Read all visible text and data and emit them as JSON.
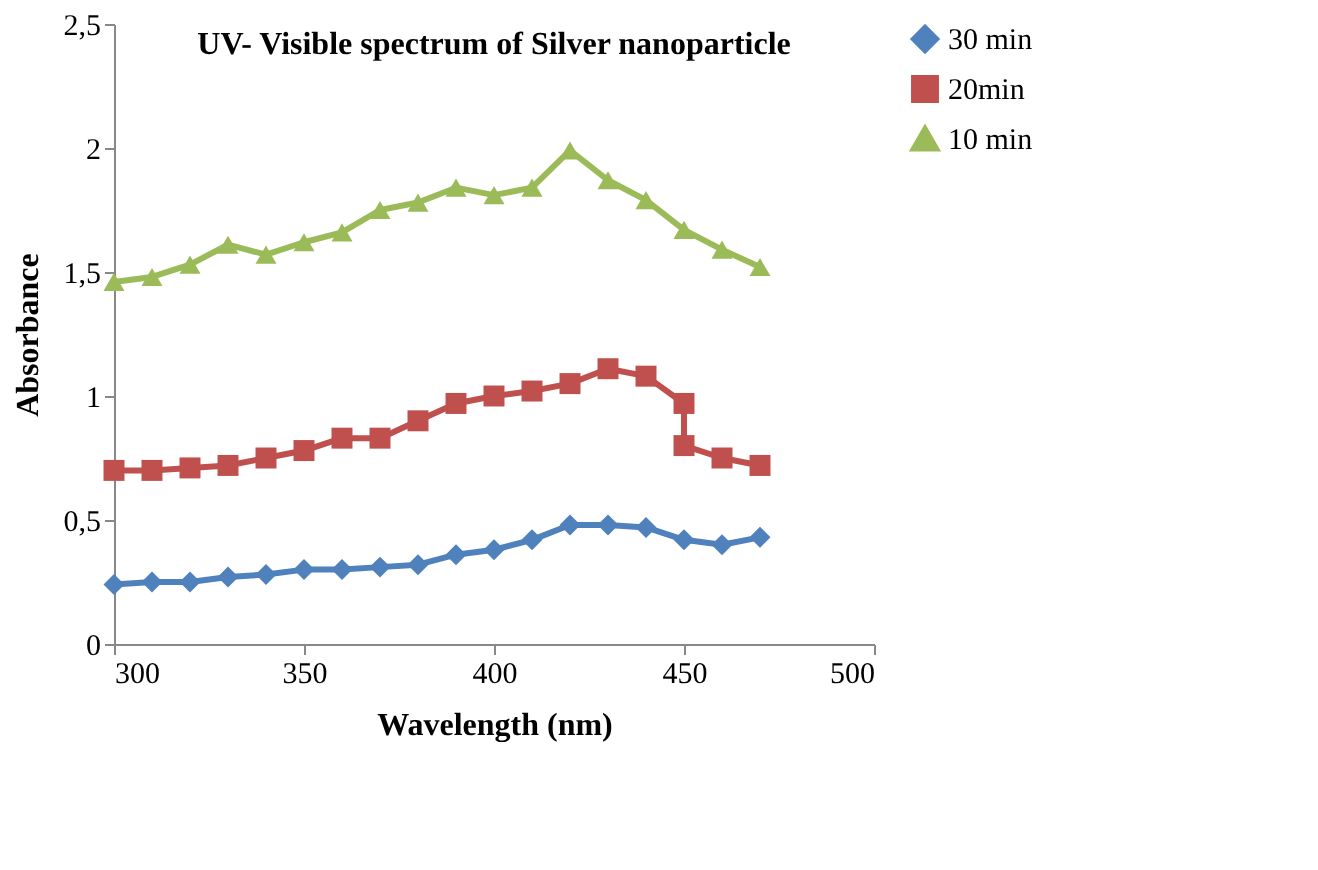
{
  "chart_data": {
    "type": "line",
    "title": "UV- Visible  spectrum of Silver  nanoparticle",
    "xlabel": "Wavelength (nm)",
    "ylabel": "Absorbance",
    "x": [
      300,
      310,
      320,
      330,
      340,
      350,
      360,
      370,
      380,
      390,
      400,
      410,
      420,
      430,
      440,
      450,
      460,
      470
    ],
    "series": [
      {
        "name": "30 min",
        "color": "#4f81bd",
        "marker": "diamond",
        "values": [
          0.24,
          0.25,
          0.25,
          0.27,
          0.28,
          0.3,
          0.3,
          0.31,
          0.32,
          0.36,
          0.38,
          0.42,
          0.48,
          0.48,
          0.47,
          0.42,
          0.4,
          0.43
        ]
      },
      {
        "name": "20min",
        "color": "#c0504d",
        "marker": "square",
        "x": [
          300,
          310,
          320,
          330,
          340,
          350,
          360,
          370,
          380,
          390,
          400,
          410,
          420,
          430,
          440,
          450,
          450,
          460,
          470
        ],
        "values": [
          0.7,
          0.7,
          0.71,
          0.72,
          0.75,
          0.78,
          0.83,
          0.83,
          0.9,
          0.97,
          1.0,
          1.02,
          1.05,
          1.11,
          1.08,
          0.97,
          0.8,
          0.75,
          0.72
        ]
      },
      {
        "name": "10 min",
        "color": "#9bbb59",
        "marker": "triangle",
        "values": [
          1.46,
          1.48,
          1.53,
          1.61,
          1.57,
          1.62,
          1.66,
          1.75,
          1.78,
          1.84,
          1.81,
          1.84,
          1.99,
          1.87,
          1.79,
          1.67,
          1.59,
          1.52
        ]
      }
    ],
    "xlim": [
      300,
      500
    ],
    "xticks": [
      300,
      350,
      400,
      450,
      500
    ],
    "ylim": [
      0,
      2.5
    ],
    "yticks": [
      0,
      {
        "value": 0.5,
        "label": "0,5"
      },
      1,
      {
        "value": 1.5,
        "label": "1,5"
      },
      2,
      {
        "value": 2.5,
        "label": "2,5"
      }
    ],
    "grid": false,
    "legend": "right",
    "line_style": "solid"
  }
}
